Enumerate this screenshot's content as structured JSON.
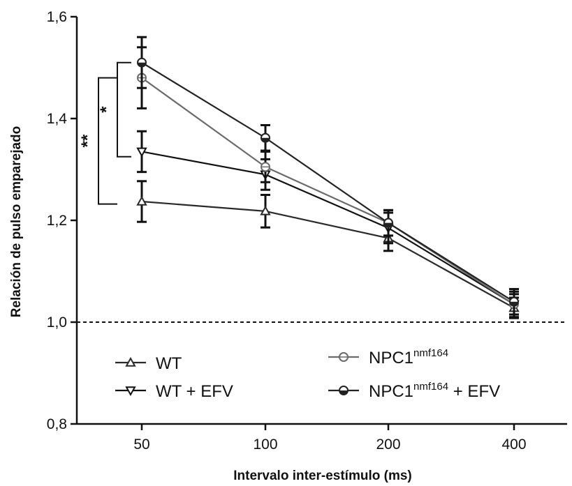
{
  "chart_data": {
    "type": "line",
    "xlabel": "Intervalo inter-estímulo (ms)",
    "ylabel": "Relación de pulso emparejado",
    "categories": [
      "50",
      "100",
      "200",
      "400"
    ],
    "ylim": [
      0.8,
      1.6
    ],
    "yticks": [
      "0,8",
      "1,0",
      "1,2",
      "1,4",
      "1,6"
    ],
    "ytick_values": [
      0.8,
      1.0,
      1.2,
      1.4,
      1.6
    ],
    "reference_line": 1.0,
    "grid": false,
    "legend_position": "bottom",
    "series": [
      {
        "name": "WT",
        "marker": "triangle-up",
        "color": "#2a2a2a",
        "values": [
          1.237,
          1.218,
          1.165,
          1.028
        ],
        "errors": [
          0.04,
          0.032,
          0.025,
          0.02
        ]
      },
      {
        "name": "WT + EFV",
        "marker": "triangle-down",
        "color": "#111111",
        "values": [
          1.335,
          1.29,
          1.185,
          1.035
        ],
        "errors": [
          0.04,
          0.03,
          0.03,
          0.02
        ]
      },
      {
        "name": "NPC1",
        "name_sup": "nmf164",
        "marker": "circle-open",
        "color": "#6a6a6a",
        "values": [
          1.48,
          1.305,
          1.195,
          1.035
        ],
        "errors": [
          0.06,
          0.03,
          0.025,
          0.025
        ]
      },
      {
        "name": "NPC1",
        "name_sup": "nmf164",
        "name_suffix": " + EFV",
        "marker": "circle-half",
        "color": "#222222",
        "values": [
          1.51,
          1.362,
          1.195,
          1.04
        ],
        "errors": [
          0.05,
          0.025,
          0.025,
          0.025
        ]
      }
    ],
    "significance": [
      {
        "label": "*",
        "from": 1.51,
        "to": 1.325
      },
      {
        "label": "**",
        "from": 1.48,
        "to": 1.232
      }
    ]
  }
}
